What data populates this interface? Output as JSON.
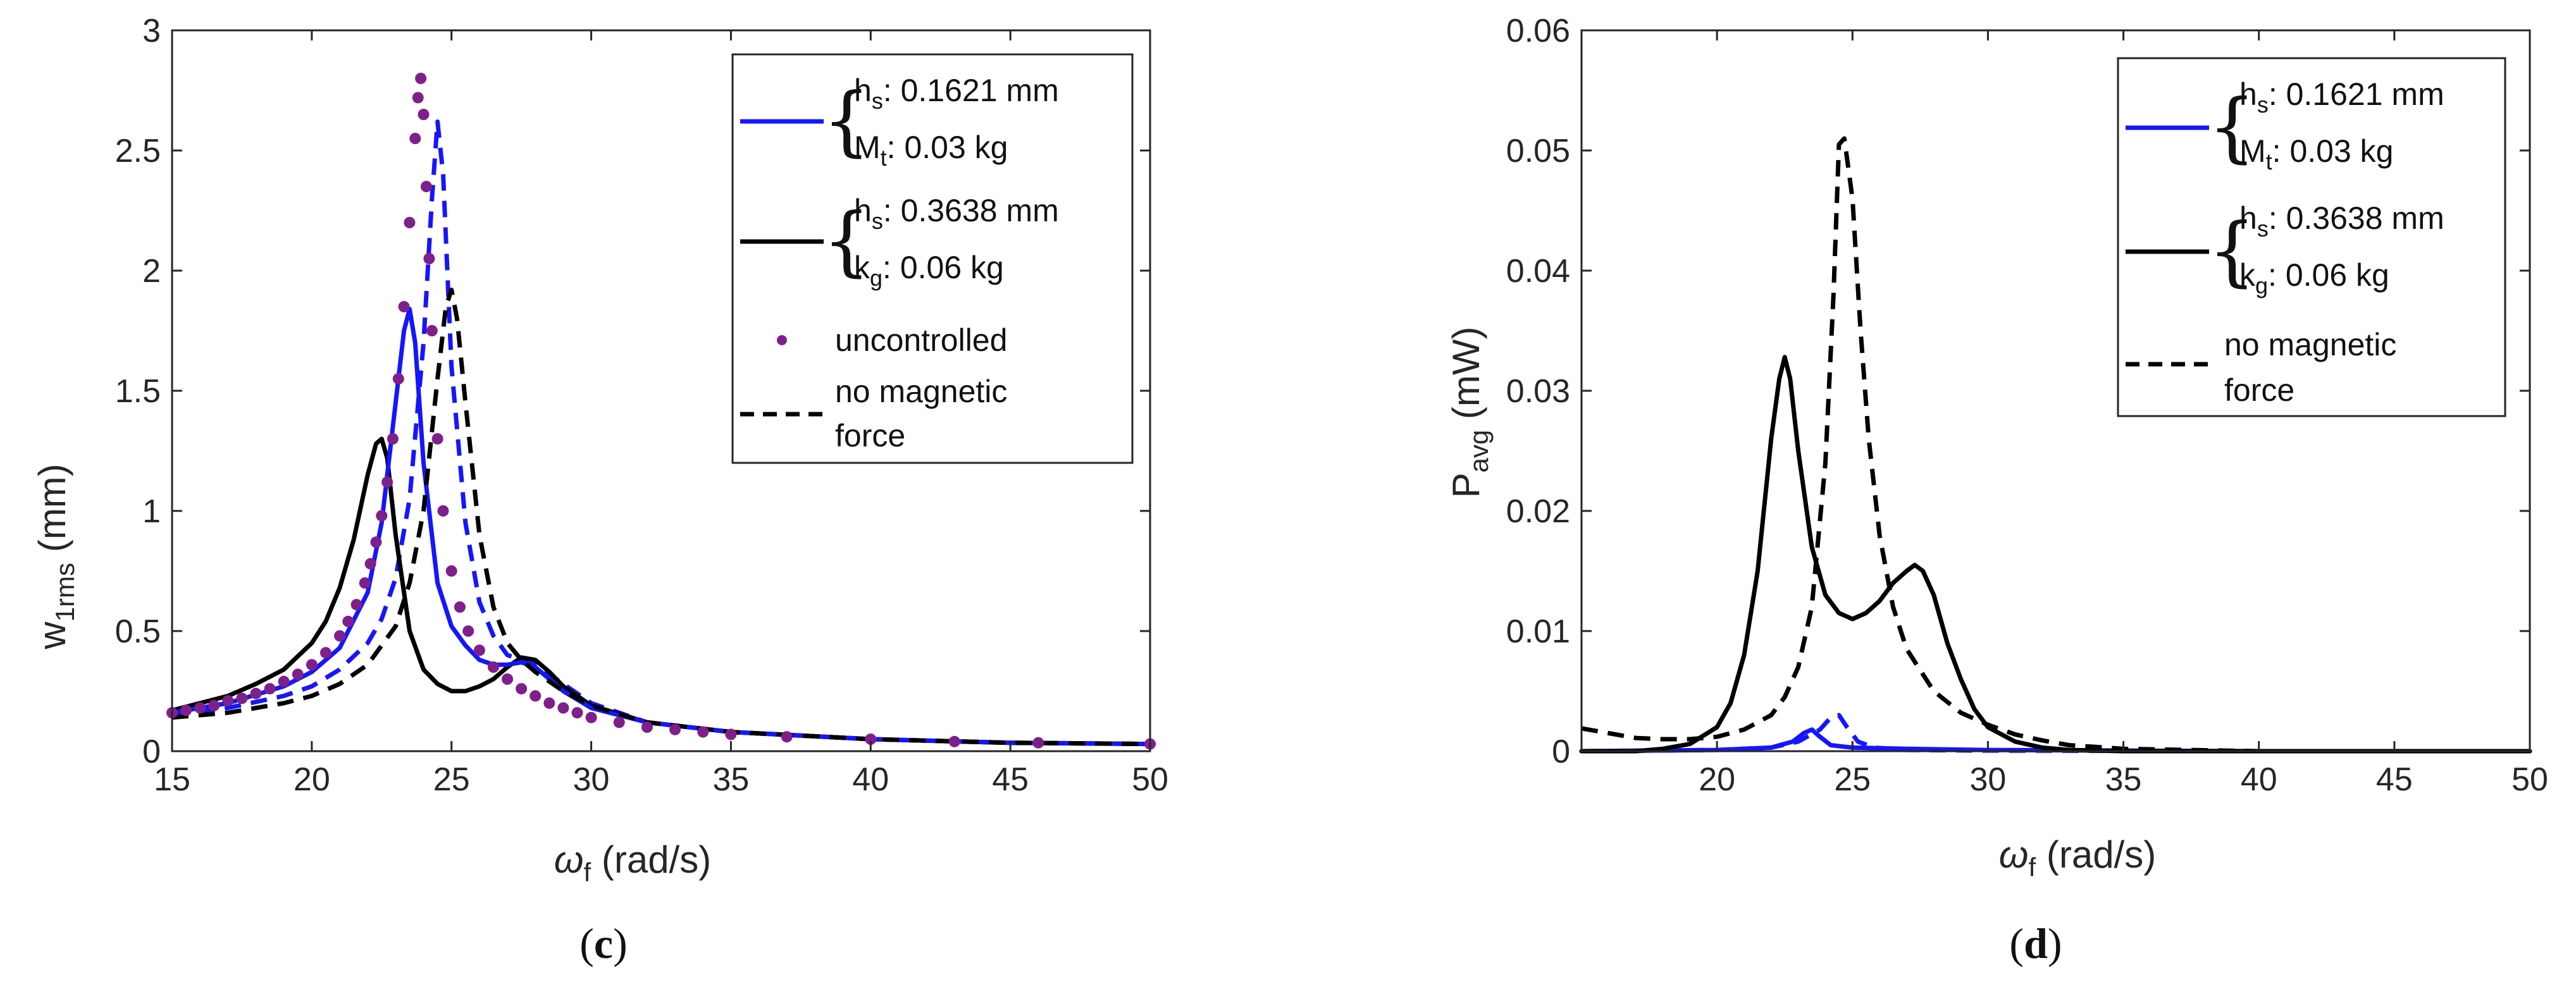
{
  "colors": {
    "blue": "#1515ff",
    "black": "#000000",
    "purple": "#7f1f8c",
    "axis": "#262626"
  },
  "chart_data": [
    {
      "type": "line",
      "panel_label_open": "(",
      "panel_label": "c",
      "panel_label_close": ")",
      "xlabel_symbol": "ω",
      "xlabel_sub": "f",
      "xlabel_unit": " (rad/s)",
      "ylabel_main": "w",
      "ylabel_sub": "1rms",
      "ylabel_unit": " (mm)",
      "xlim": [
        15,
        50
      ],
      "ylim": [
        0,
        3
      ],
      "xticks": [
        15,
        20,
        25,
        30,
        35,
        40,
        45,
        50
      ],
      "yticks": [
        0,
        0.5,
        1,
        1.5,
        2,
        2.5,
        3
      ],
      "ytick_labels": [
        "0",
        "0.5",
        "1",
        "1.5",
        "2",
        "2.5",
        "3"
      ],
      "legend": {
        "position": "top-right",
        "entries": [
          {
            "group": "blue",
            "line1_main": "h",
            "line1_sub": "s",
            "line1_rest": ": 0.1621 mm",
            "line2_main": "M",
            "line2_sub": "t",
            "line2_rest": ": 0.03 kg"
          },
          {
            "group": "black",
            "line1_main": "h",
            "line1_sub": "s",
            "line1_rest": ": 0.3638 mm",
            "line2_main": "k",
            "line2_sub": "g",
            "line2_rest": ": 0.06 kg"
          },
          {
            "group": "uncontrolled",
            "text": "uncontrolled"
          },
          {
            "group": "nomag",
            "text_line1": "no magnetic",
            "text_line2": "force"
          }
        ]
      },
      "series": [
        {
          "name": "blue solid",
          "color": "blue",
          "style": "solid",
          "x": [
            15,
            17,
            19,
            20,
            21,
            22,
            22.5,
            23,
            23.3,
            23.5,
            23.7,
            24,
            24.5,
            25,
            25.5,
            26,
            26.5,
            27,
            27.5,
            28,
            28.5,
            29,
            30,
            32,
            35,
            40,
            45,
            50
          ],
          "y": [
            0.16,
            0.2,
            0.27,
            0.33,
            0.43,
            0.66,
            0.95,
            1.45,
            1.75,
            1.84,
            1.7,
            1.2,
            0.7,
            0.52,
            0.44,
            0.38,
            0.36,
            0.36,
            0.37,
            0.35,
            0.3,
            0.25,
            0.18,
            0.12,
            0.08,
            0.05,
            0.035,
            0.03
          ]
        },
        {
          "name": "blue dashed",
          "color": "blue",
          "style": "dashed",
          "x": [
            15,
            17,
            19,
            20,
            21,
            22,
            22.5,
            23,
            23.5,
            24,
            24.3,
            24.5,
            24.7,
            25,
            25.5,
            26,
            26.5,
            27,
            27.5,
            28,
            29,
            30,
            32,
            35,
            40,
            45,
            50
          ],
          "y": [
            0.15,
            0.18,
            0.23,
            0.27,
            0.34,
            0.45,
            0.55,
            0.72,
            1.05,
            1.7,
            2.3,
            2.62,
            2.4,
            1.6,
            0.95,
            0.62,
            0.48,
            0.4,
            0.38,
            0.36,
            0.28,
            0.2,
            0.12,
            0.08,
            0.05,
            0.035,
            0.03
          ]
        },
        {
          "name": "black solid",
          "color": "black",
          "style": "solid",
          "x": [
            15,
            17,
            18,
            19,
            20,
            20.5,
            21,
            21.5,
            22,
            22.3,
            22.5,
            22.7,
            23,
            23.5,
            24,
            24.5,
            25,
            25.5,
            26,
            26.5,
            27,
            27.5,
            28,
            28.5,
            29,
            30,
            32,
            35,
            40,
            45,
            50
          ],
          "y": [
            0.17,
            0.23,
            0.28,
            0.34,
            0.45,
            0.54,
            0.68,
            0.88,
            1.15,
            1.28,
            1.3,
            1.22,
            0.9,
            0.5,
            0.34,
            0.28,
            0.25,
            0.25,
            0.27,
            0.3,
            0.35,
            0.39,
            0.38,
            0.33,
            0.27,
            0.19,
            0.12,
            0.08,
            0.05,
            0.035,
            0.03
          ]
        },
        {
          "name": "no magnetic force",
          "color": "black",
          "style": "dashed",
          "x": [
            15,
            17,
            19,
            20,
            21,
            22,
            23,
            23.5,
            24,
            24.5,
            24.8,
            25,
            25.2,
            25.5,
            26,
            26.5,
            27,
            27.5,
            28,
            29,
            30,
            32,
            35,
            40,
            45,
            50
          ],
          "y": [
            0.14,
            0.16,
            0.2,
            0.23,
            0.28,
            0.36,
            0.52,
            0.7,
            1.0,
            1.55,
            1.85,
            1.92,
            1.8,
            1.45,
            0.9,
            0.6,
            0.45,
            0.38,
            0.33,
            0.25,
            0.19,
            0.12,
            0.08,
            0.05,
            0.035,
            0.03
          ]
        },
        {
          "name": "uncontrolled",
          "color": "purple",
          "style": "dots",
          "x": [
            15,
            15.5,
            16,
            16.5,
            17,
            17.5,
            18,
            18.5,
            19,
            19.5,
            20,
            20.5,
            21,
            21.3,
            21.6,
            21.9,
            22.1,
            22.3,
            22.5,
            22.7,
            22.9,
            23.1,
            23.3,
            23.5,
            23.7,
            23.8,
            23.9,
            24,
            24.1,
            24.2,
            24.3,
            24.5,
            24.7,
            25,
            25.3,
            25.6,
            26,
            26.5,
            27,
            27.5,
            28,
            28.5,
            29,
            29.5,
            30,
            31,
            32,
            33,
            34,
            35,
            37,
            40,
            43,
            46,
            50
          ],
          "y": [
            0.16,
            0.17,
            0.18,
            0.19,
            0.21,
            0.22,
            0.24,
            0.26,
            0.29,
            0.32,
            0.36,
            0.41,
            0.48,
            0.54,
            0.61,
            0.7,
            0.78,
            0.87,
            0.98,
            1.12,
            1.3,
            1.55,
            1.85,
            2.2,
            2.55,
            2.72,
            2.8,
            2.65,
            2.35,
            2.05,
            1.75,
            1.3,
            1.0,
            0.75,
            0.6,
            0.5,
            0.42,
            0.35,
            0.3,
            0.26,
            0.23,
            0.2,
            0.18,
            0.16,
            0.14,
            0.12,
            0.1,
            0.09,
            0.08,
            0.07,
            0.06,
            0.05,
            0.04,
            0.035,
            0.03
          ]
        }
      ]
    },
    {
      "type": "line",
      "panel_label_open": "(",
      "panel_label": "d",
      "panel_label_close": ")",
      "xlabel_symbol": "ω",
      "xlabel_sub": "f",
      "xlabel_unit": " (rad/s)",
      "ylabel_main": "P",
      "ylabel_sub": "avg",
      "ylabel_unit": " (mW)",
      "xlim": [
        15,
        50
      ],
      "ylim": [
        0,
        0.06
      ],
      "xticks": [
        20,
        25,
        30,
        35,
        40,
        45,
        50
      ],
      "yticks": [
        0,
        0.01,
        0.02,
        0.03,
        0.04,
        0.05,
        0.06
      ],
      "ytick_labels": [
        "0",
        "0.01",
        "0.02",
        "0.03",
        "0.04",
        "0.05",
        "0.06"
      ],
      "legend": {
        "position": "top-right",
        "entries": [
          {
            "group": "blue",
            "line1_main": "h",
            "line1_sub": "s",
            "line1_rest": ": 0.1621 mm",
            "line2_main": "M",
            "line2_sub": "t",
            "line2_rest": ": 0.03 kg"
          },
          {
            "group": "black",
            "line1_main": "h",
            "line1_sub": "s",
            "line1_rest": ": 0.3638 mm",
            "line2_main": "k",
            "line2_sub": "g",
            "line2_rest": ": 0.06 kg"
          },
          {
            "group": "nomag",
            "text_line1": "no magnetic",
            "text_line2": "force"
          }
        ]
      },
      "series": [
        {
          "name": "black solid",
          "color": "black",
          "style": "solid",
          "x": [
            15,
            17,
            18,
            19,
            20,
            20.5,
            21,
            21.5,
            22,
            22.3,
            22.5,
            22.7,
            23,
            23.5,
            24,
            24.5,
            25,
            25.5,
            26,
            26.5,
            27,
            27.3,
            27.6,
            28,
            28.5,
            29,
            29.5,
            30,
            31,
            32,
            33,
            35,
            40,
            45,
            50
          ],
          "y": [
            0,
            0,
            0.0002,
            0.0006,
            0.002,
            0.004,
            0.008,
            0.015,
            0.026,
            0.031,
            0.0328,
            0.031,
            0.025,
            0.017,
            0.013,
            0.0115,
            0.011,
            0.0115,
            0.0125,
            0.014,
            0.015,
            0.0155,
            0.015,
            0.013,
            0.009,
            0.006,
            0.0035,
            0.002,
            0.0008,
            0.0003,
            0.0001,
            0,
            0,
            0,
            0
          ]
        },
        {
          "name": "no magnetic force",
          "color": "black",
          "style": "dashed",
          "x": [
            15,
            16,
            17,
            18,
            19,
            20,
            21,
            22,
            22.5,
            23,
            23.5,
            24,
            24.3,
            24.5,
            24.7,
            25,
            25.3,
            25.6,
            26,
            26.5,
            27,
            28,
            29,
            30,
            31,
            32,
            33,
            35,
            40,
            45,
            50
          ],
          "y": [
            0.0019,
            0.0015,
            0.0011,
            0.001,
            0.001,
            0.0012,
            0.0018,
            0.003,
            0.0045,
            0.007,
            0.012,
            0.024,
            0.038,
            0.0505,
            0.051,
            0.046,
            0.035,
            0.026,
            0.018,
            0.012,
            0.0085,
            0.005,
            0.0032,
            0.0022,
            0.0014,
            0.0009,
            0.0005,
            0.0002,
            0,
            0,
            0
          ]
        },
        {
          "name": "blue solid",
          "color": "blue",
          "style": "solid",
          "x": [
            15,
            20,
            22,
            22.8,
            23.2,
            23.5,
            23.8,
            24.2,
            25,
            27,
            30,
            35,
            40,
            50
          ],
          "y": [
            0,
            0.0001,
            0.0003,
            0.0008,
            0.0015,
            0.0018,
            0.0012,
            0.0005,
            0.0003,
            0.0002,
            0.0001,
            5e-05,
            0,
            0
          ]
        },
        {
          "name": "blue dashed",
          "color": "blue",
          "style": "dashed",
          "x": [
            15,
            20,
            22,
            23,
            23.8,
            24.2,
            24.5,
            24.8,
            25.2,
            25.8,
            27,
            30,
            40,
            50
          ],
          "y": [
            0,
            0.0001,
            0.0003,
            0.0008,
            0.0018,
            0.0028,
            0.003,
            0.002,
            0.0008,
            0.0003,
            0.0001,
            5e-05,
            0,
            0
          ]
        }
      ]
    }
  ]
}
